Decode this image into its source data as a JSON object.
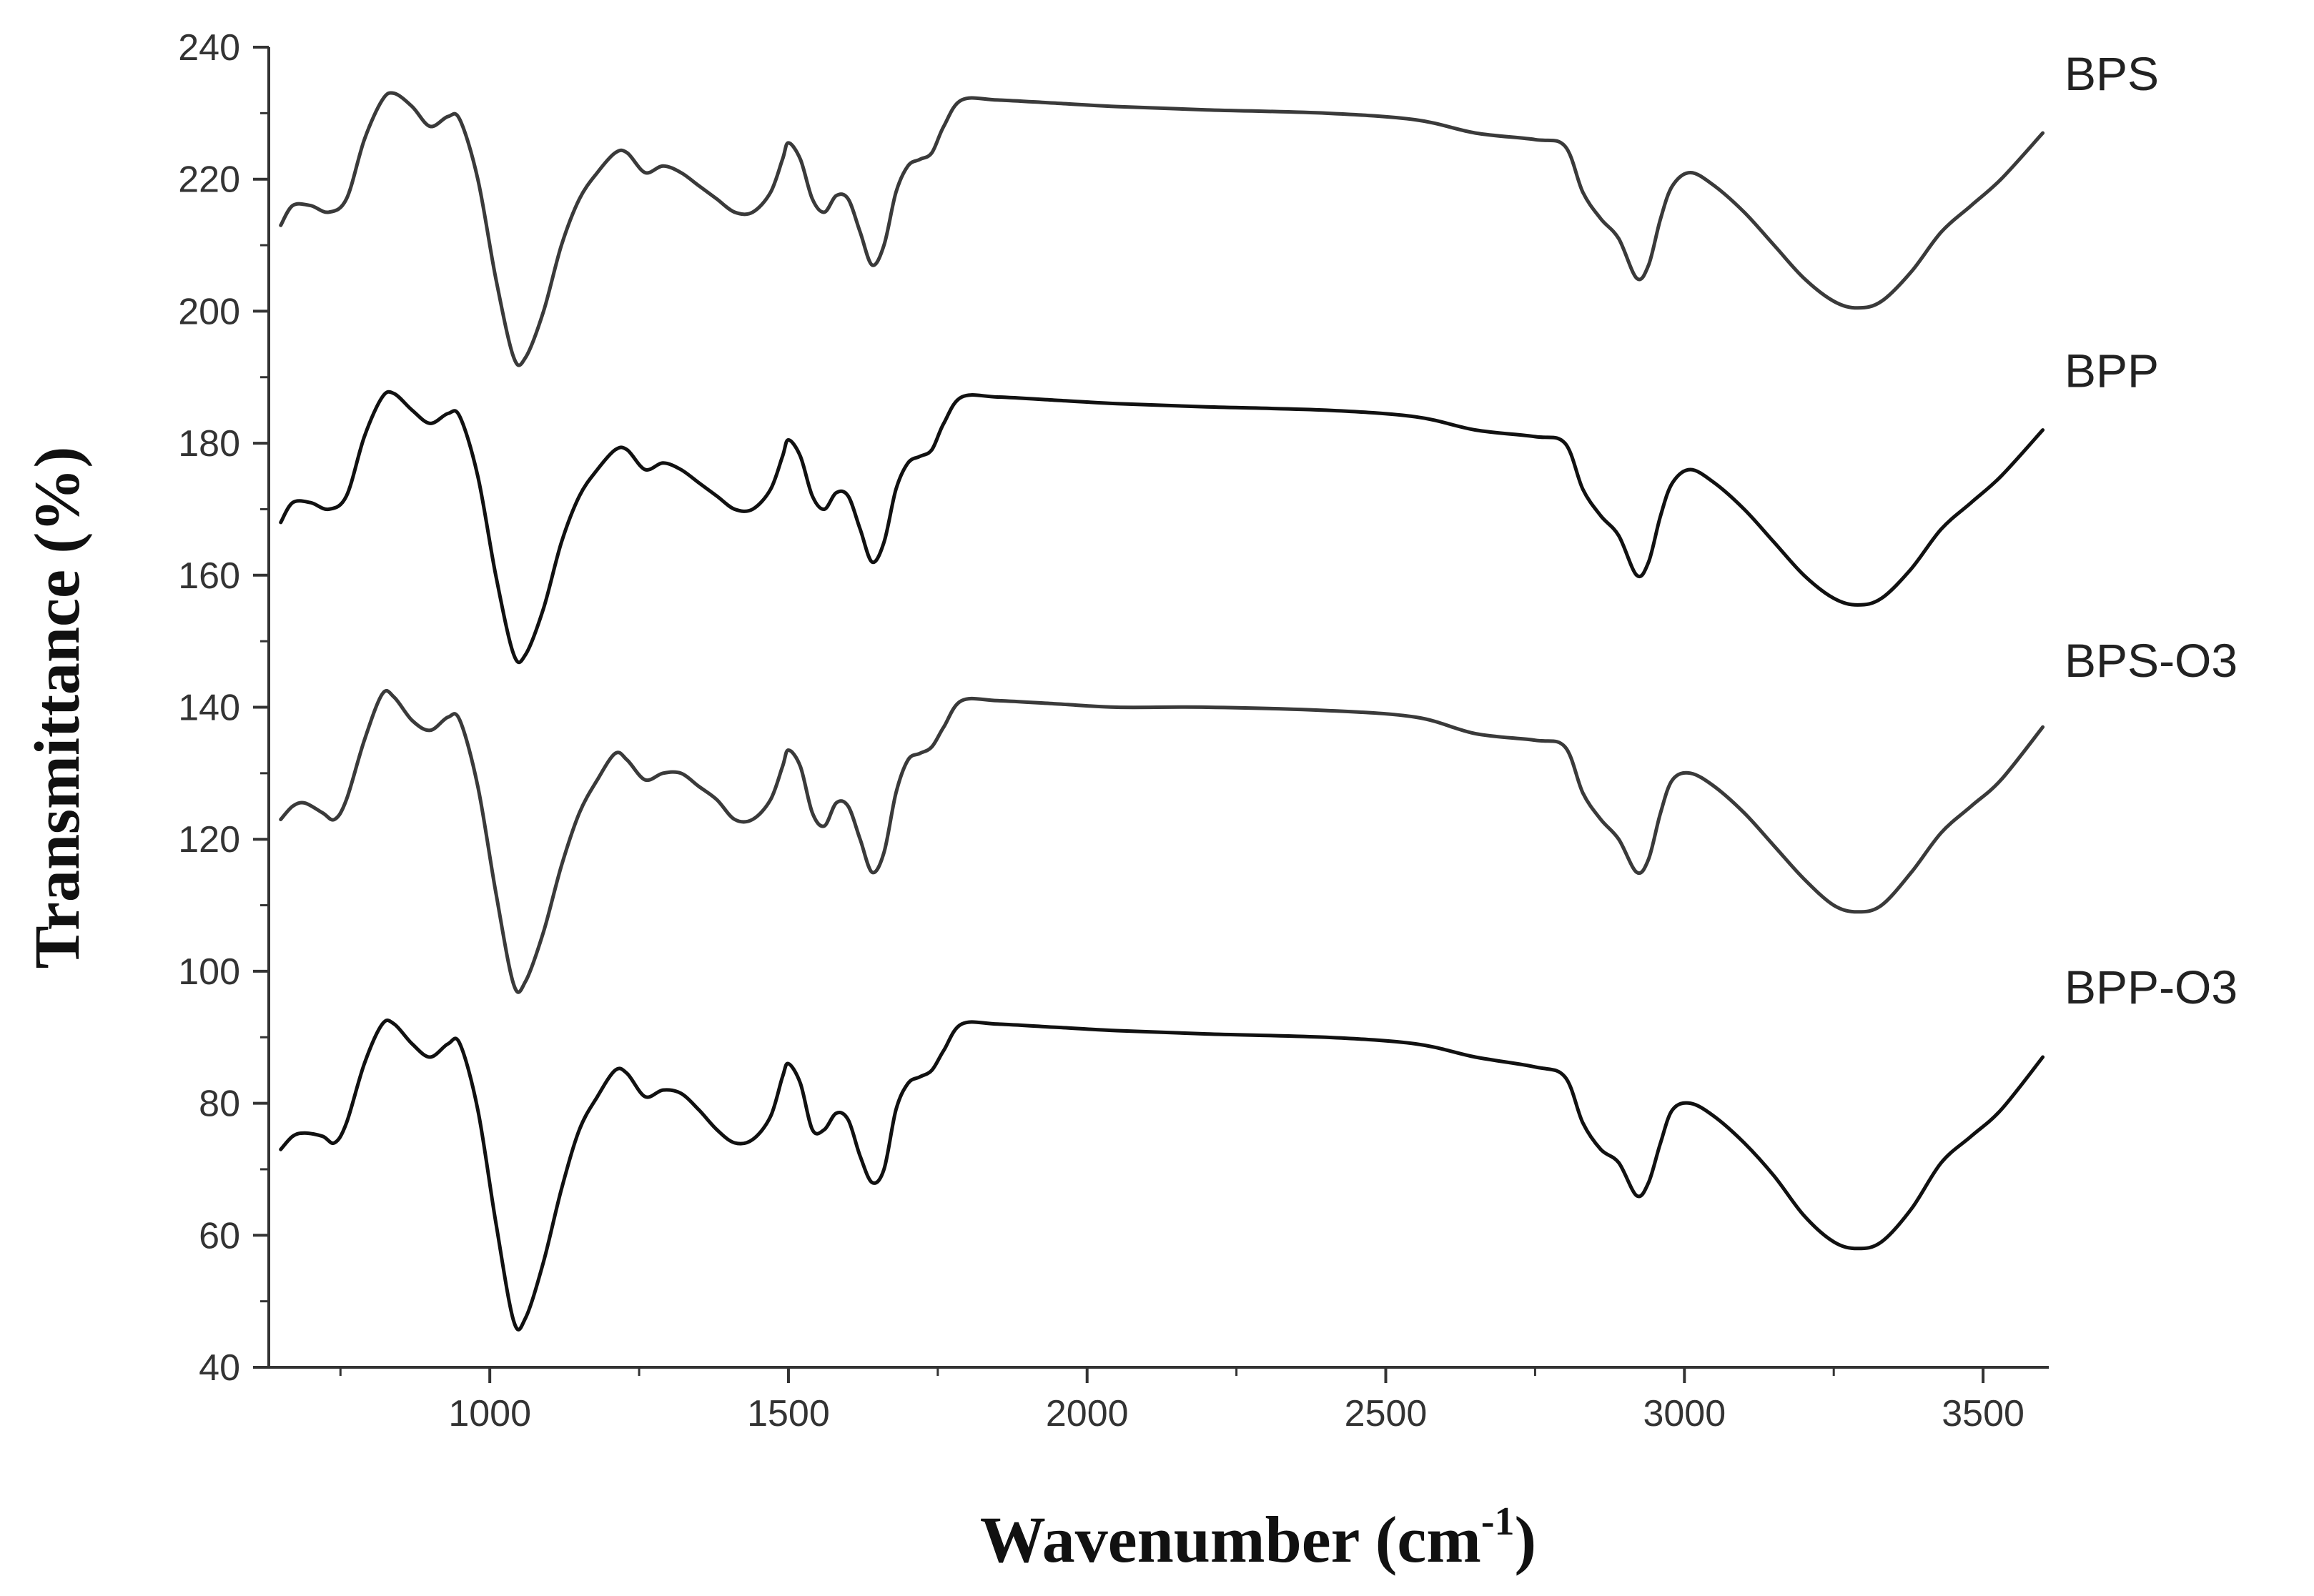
{
  "chart_data": {
    "type": "line",
    "xlabel": "Wavenumber (cm",
    "xlabel_sup": "-1",
    "xlabel_close": ")",
    "ylabel": "Transmittance (%)",
    "xlim": [
      630,
      3610
    ],
    "ylim": [
      40,
      240
    ],
    "x_ticks": [
      "1000",
      "1500",
      "2000",
      "2500",
      "3000",
      "3500"
    ],
    "y_ticks": [
      "40",
      "60",
      "80",
      "100",
      "120",
      "140",
      "160",
      "180",
      "200",
      "220",
      "240"
    ],
    "grid": false,
    "legend": "none",
    "series_labels_position": "right-end",
    "series": [
      {
        "name": "BPS",
        "color": "#3a3a3a",
        "points": [
          [
            650,
            213
          ],
          [
            670,
            216
          ],
          [
            700,
            216
          ],
          [
            730,
            215
          ],
          [
            760,
            217
          ],
          [
            790,
            226
          ],
          [
            820,
            232
          ],
          [
            840,
            233
          ],
          [
            870,
            231
          ],
          [
            900,
            228
          ],
          [
            930,
            229.5
          ],
          [
            950,
            229
          ],
          [
            980,
            220
          ],
          [
            1010,
            205
          ],
          [
            1040,
            193
          ],
          [
            1060,
            193
          ],
          [
            1090,
            200
          ],
          [
            1120,
            210
          ],
          [
            1150,
            217
          ],
          [
            1180,
            221
          ],
          [
            1210,
            224
          ],
          [
            1230,
            224
          ],
          [
            1260,
            221
          ],
          [
            1290,
            222
          ],
          [
            1320,
            221
          ],
          [
            1350,
            219
          ],
          [
            1380,
            217
          ],
          [
            1410,
            215
          ],
          [
            1440,
            215
          ],
          [
            1470,
            218
          ],
          [
            1490,
            223
          ],
          [
            1500,
            225.5
          ],
          [
            1520,
            223
          ],
          [
            1540,
            217
          ],
          [
            1560,
            215
          ],
          [
            1580,
            217.5
          ],
          [
            1600,
            217
          ],
          [
            1620,
            212
          ],
          [
            1640,
            207
          ],
          [
            1660,
            210
          ],
          [
            1680,
            218
          ],
          [
            1700,
            222
          ],
          [
            1720,
            223
          ],
          [
            1740,
            224
          ],
          [
            1760,
            228
          ],
          [
            1790,
            232
          ],
          [
            1850,
            232
          ],
          [
            1950,
            231.5
          ],
          [
            2050,
            231
          ],
          [
            2200,
            230.5
          ],
          [
            2400,
            230
          ],
          [
            2550,
            229
          ],
          [
            2650,
            227
          ],
          [
            2750,
            226
          ],
          [
            2800,
            225
          ],
          [
            2830,
            218
          ],
          [
            2860,
            214
          ],
          [
            2890,
            211
          ],
          [
            2920,
            205
          ],
          [
            2940,
            207
          ],
          [
            2960,
            214
          ],
          [
            2980,
            219
          ],
          [
            3010,
            221
          ],
          [
            3050,
            219
          ],
          [
            3100,
            215
          ],
          [
            3150,
            210
          ],
          [
            3200,
            205
          ],
          [
            3250,
            201.5
          ],
          [
            3290,
            200.5
          ],
          [
            3330,
            201.5
          ],
          [
            3380,
            206
          ],
          [
            3430,
            212
          ],
          [
            3480,
            216
          ],
          [
            3530,
            220
          ],
          [
            3600,
            227
          ]
        ]
      },
      {
        "name": "BPP",
        "color": "#111111",
        "points": [
          [
            650,
            168
          ],
          [
            670,
            171
          ],
          [
            700,
            171
          ],
          [
            730,
            170
          ],
          [
            760,
            172
          ],
          [
            790,
            181
          ],
          [
            820,
            187
          ],
          [
            840,
            187.5
          ],
          [
            870,
            185
          ],
          [
            900,
            183
          ],
          [
            930,
            184.5
          ],
          [
            950,
            184
          ],
          [
            980,
            175
          ],
          [
            1010,
            160
          ],
          [
            1040,
            148
          ],
          [
            1060,
            148
          ],
          [
            1090,
            155
          ],
          [
            1120,
            165
          ],
          [
            1150,
            172
          ],
          [
            1180,
            176
          ],
          [
            1210,
            179
          ],
          [
            1230,
            179
          ],
          [
            1260,
            176
          ],
          [
            1290,
            177
          ],
          [
            1320,
            176
          ],
          [
            1350,
            174
          ],
          [
            1380,
            172
          ],
          [
            1410,
            170
          ],
          [
            1440,
            170
          ],
          [
            1470,
            173
          ],
          [
            1490,
            178
          ],
          [
            1500,
            180.5
          ],
          [
            1520,
            178
          ],
          [
            1540,
            172
          ],
          [
            1560,
            170
          ],
          [
            1580,
            172.5
          ],
          [
            1600,
            172
          ],
          [
            1620,
            167
          ],
          [
            1640,
            162
          ],
          [
            1660,
            165
          ],
          [
            1680,
            173
          ],
          [
            1700,
            177
          ],
          [
            1720,
            178
          ],
          [
            1740,
            179
          ],
          [
            1760,
            183
          ],
          [
            1790,
            187
          ],
          [
            1850,
            187
          ],
          [
            1950,
            186.5
          ],
          [
            2050,
            186
          ],
          [
            2200,
            185.5
          ],
          [
            2400,
            185
          ],
          [
            2550,
            184
          ],
          [
            2650,
            182
          ],
          [
            2750,
            181
          ],
          [
            2800,
            180
          ],
          [
            2830,
            173
          ],
          [
            2860,
            169
          ],
          [
            2890,
            166
          ],
          [
            2920,
            160
          ],
          [
            2940,
            162
          ],
          [
            2960,
            169
          ],
          [
            2980,
            174
          ],
          [
            3010,
            176
          ],
          [
            3050,
            174
          ],
          [
            3100,
            170
          ],
          [
            3150,
            165
          ],
          [
            3200,
            160
          ],
          [
            3250,
            156.5
          ],
          [
            3290,
            155.5
          ],
          [
            3330,
            156.5
          ],
          [
            3380,
            161
          ],
          [
            3430,
            167
          ],
          [
            3480,
            171
          ],
          [
            3530,
            175
          ],
          [
            3600,
            182
          ]
        ]
      },
      {
        "name": "BPS-O3",
        "color": "#3a3a3a",
        "points": [
          [
            650,
            123
          ],
          [
            670,
            125
          ],
          [
            690,
            125.5
          ],
          [
            720,
            124
          ],
          [
            740,
            123
          ],
          [
            760,
            126
          ],
          [
            790,
            135
          ],
          [
            820,
            142
          ],
          [
            840,
            141.5
          ],
          [
            870,
            138
          ],
          [
            900,
            136.5
          ],
          [
            930,
            138.5
          ],
          [
            950,
            138
          ],
          [
            980,
            128
          ],
          [
            1010,
            112
          ],
          [
            1040,
            98
          ],
          [
            1060,
            98.5
          ],
          [
            1090,
            106
          ],
          [
            1120,
            116
          ],
          [
            1150,
            124
          ],
          [
            1180,
            129
          ],
          [
            1210,
            133
          ],
          [
            1230,
            132
          ],
          [
            1260,
            129
          ],
          [
            1290,
            130
          ],
          [
            1320,
            130
          ],
          [
            1350,
            128
          ],
          [
            1380,
            126
          ],
          [
            1410,
            123
          ],
          [
            1440,
            123
          ],
          [
            1470,
            126
          ],
          [
            1490,
            131
          ],
          [
            1500,
            133.5
          ],
          [
            1520,
            131
          ],
          [
            1540,
            124
          ],
          [
            1560,
            122
          ],
          [
            1580,
            125.5
          ],
          [
            1600,
            125
          ],
          [
            1620,
            120
          ],
          [
            1640,
            115
          ],
          [
            1660,
            118
          ],
          [
            1680,
            127
          ],
          [
            1700,
            132
          ],
          [
            1720,
            133
          ],
          [
            1740,
            134
          ],
          [
            1760,
            137
          ],
          [
            1790,
            141
          ],
          [
            1850,
            141
          ],
          [
            1950,
            140.5
          ],
          [
            2050,
            140
          ],
          [
            2200,
            140
          ],
          [
            2400,
            139.5
          ],
          [
            2550,
            138.5
          ],
          [
            2650,
            136
          ],
          [
            2750,
            135
          ],
          [
            2800,
            134
          ],
          [
            2830,
            127
          ],
          [
            2860,
            123
          ],
          [
            2890,
            120
          ],
          [
            2920,
            115
          ],
          [
            2940,
            117
          ],
          [
            2960,
            124
          ],
          [
            2980,
            129
          ],
          [
            3010,
            130
          ],
          [
            3050,
            128
          ],
          [
            3100,
            124
          ],
          [
            3150,
            119
          ],
          [
            3200,
            114
          ],
          [
            3250,
            110
          ],
          [
            3290,
            109
          ],
          [
            3330,
            110
          ],
          [
            3380,
            115
          ],
          [
            3430,
            121
          ],
          [
            3480,
            125
          ],
          [
            3530,
            129
          ],
          [
            3600,
            137
          ]
        ]
      },
      {
        "name": "BPP-O3",
        "color": "#111111",
        "points": [
          [
            650,
            73
          ],
          [
            670,
            75
          ],
          [
            690,
            75.5
          ],
          [
            720,
            75
          ],
          [
            740,
            74
          ],
          [
            760,
            77
          ],
          [
            790,
            86
          ],
          [
            820,
            92
          ],
          [
            840,
            92
          ],
          [
            870,
            89
          ],
          [
            900,
            87
          ],
          [
            930,
            89
          ],
          [
            950,
            89
          ],
          [
            980,
            79
          ],
          [
            1010,
            62
          ],
          [
            1040,
            47
          ],
          [
            1060,
            47.5
          ],
          [
            1090,
            56
          ],
          [
            1120,
            67
          ],
          [
            1150,
            76
          ],
          [
            1180,
            81
          ],
          [
            1210,
            85
          ],
          [
            1230,
            84.5
          ],
          [
            1260,
            81
          ],
          [
            1290,
            82
          ],
          [
            1320,
            81.5
          ],
          [
            1350,
            79
          ],
          [
            1380,
            76
          ],
          [
            1410,
            74
          ],
          [
            1440,
            74.5
          ],
          [
            1470,
            78
          ],
          [
            1490,
            84
          ],
          [
            1500,
            86
          ],
          [
            1520,
            83
          ],
          [
            1540,
            76
          ],
          [
            1560,
            76
          ],
          [
            1580,
            78.5
          ],
          [
            1600,
            77.5
          ],
          [
            1620,
            72
          ],
          [
            1640,
            68
          ],
          [
            1660,
            70
          ],
          [
            1680,
            79
          ],
          [
            1700,
            83
          ],
          [
            1720,
            84
          ],
          [
            1740,
            85
          ],
          [
            1760,
            88
          ],
          [
            1790,
            92
          ],
          [
            1850,
            92
          ],
          [
            1950,
            91.5
          ],
          [
            2050,
            91
          ],
          [
            2200,
            90.5
          ],
          [
            2400,
            90
          ],
          [
            2550,
            89
          ],
          [
            2650,
            87
          ],
          [
            2750,
            85.5
          ],
          [
            2800,
            84
          ],
          [
            2830,
            77
          ],
          [
            2860,
            73
          ],
          [
            2890,
            71
          ],
          [
            2920,
            66
          ],
          [
            2940,
            68
          ],
          [
            2960,
            74
          ],
          [
            2980,
            79
          ],
          [
            3010,
            80
          ],
          [
            3050,
            78
          ],
          [
            3100,
            74
          ],
          [
            3150,
            69
          ],
          [
            3200,
            63
          ],
          [
            3250,
            59
          ],
          [
            3290,
            58
          ],
          [
            3330,
            59
          ],
          [
            3380,
            64
          ],
          [
            3430,
            71
          ],
          [
            3480,
            75
          ],
          [
            3530,
            79
          ],
          [
            3600,
            87
          ]
        ]
      }
    ]
  }
}
